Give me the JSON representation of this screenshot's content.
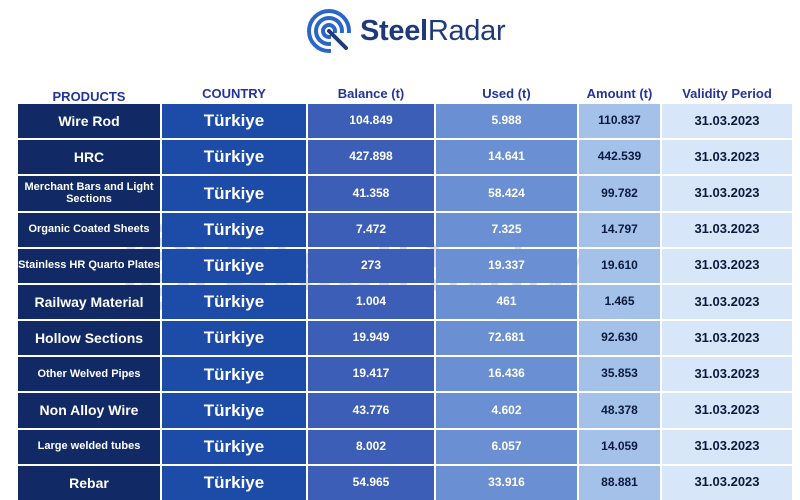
{
  "brand": {
    "name_part1": "Steel",
    "name_part2": "Radar"
  },
  "colors": {
    "product": "#112a66",
    "country": "#1c4ba8",
    "balance": "#3d5eb6",
    "used": "#6a8fd2",
    "amount": "#a4c1ea",
    "validity": "#d7e6f8",
    "header_text": "#23359a"
  },
  "headers": {
    "products": "PRODUCTS",
    "country": "COUNTRY",
    "balance": "Balance (t)",
    "used": "Used (t)",
    "amount": "Amount (t)",
    "validity": "Validity Period"
  },
  "rows": [
    {
      "product": "Wire Rod",
      "country": "Türkiye",
      "balance": "104.849",
      "used": "5.988",
      "amount": "110.837",
      "validity": "31.03.2023"
    },
    {
      "product": "HRC",
      "country": "Türkiye",
      "balance": "427.898",
      "used": "14.641",
      "amount": "442.539",
      "validity": "31.03.2023"
    },
    {
      "product": "Merchant Bars and Light Sections",
      "country": "Türkiye",
      "balance": "41.358",
      "used": "58.424",
      "amount": "99.782",
      "validity": "31.03.2023"
    },
    {
      "product": "Organic Coated Sheets",
      "country": "Türkiye",
      "balance": "7.472",
      "used": "7.325",
      "amount": "14.797",
      "validity": "31.03.2023"
    },
    {
      "product": "Stainless HR Quarto Plates",
      "country": "Türkiye",
      "balance": "273",
      "used": "19.337",
      "amount": "19.610",
      "validity": "31.03.2023"
    },
    {
      "product": "Railway Material",
      "country": "Türkiye",
      "balance": "1.004",
      "used": "461",
      "amount": "1.465",
      "validity": "31.03.2023"
    },
    {
      "product": "Hollow Sections",
      "country": "Türkiye",
      "balance": "19.949",
      "used": "72.681",
      "amount": "92.630",
      "validity": "31.03.2023"
    },
    {
      "product": "Other Welved Pipes",
      "country": "Türkiye",
      "balance": "19.417",
      "used": "16.436",
      "amount": "35.853",
      "validity": "31.03.2023"
    },
    {
      "product": "Non Alloy Wire",
      "country": "Türkiye",
      "balance": "43.776",
      "used": "4.602",
      "amount": "48.378",
      "validity": "31.03.2023"
    },
    {
      "product": "Large welded tubes",
      "country": "Türkiye",
      "balance": "8.002",
      "used": "6.057",
      "amount": "14.059",
      "validity": "31.03.2023"
    },
    {
      "product": "Rebar",
      "country": "Türkiye",
      "balance": "54.965",
      "used": "33.916",
      "amount": "88.881",
      "validity": "31.03.2023"
    }
  ]
}
